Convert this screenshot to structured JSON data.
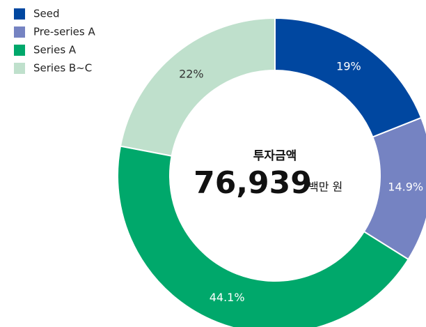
{
  "chart_data": {
    "type": "donut",
    "categories": [
      "Seed",
      "Pre-series A",
      "Series A",
      "Series B~C"
    ],
    "values": [
      19,
      14.9,
      44.1,
      22
    ],
    "value_labels": [
      "19%",
      "14.9%",
      "44.1%",
      "22%"
    ],
    "colors": [
      "#0047a0",
      "#7583c2",
      "#00a86b",
      "#bfe0cc"
    ],
    "center_title": "투자금액",
    "center_value": "76,939",
    "center_unit": "백만 원",
    "legend": "top-left"
  }
}
